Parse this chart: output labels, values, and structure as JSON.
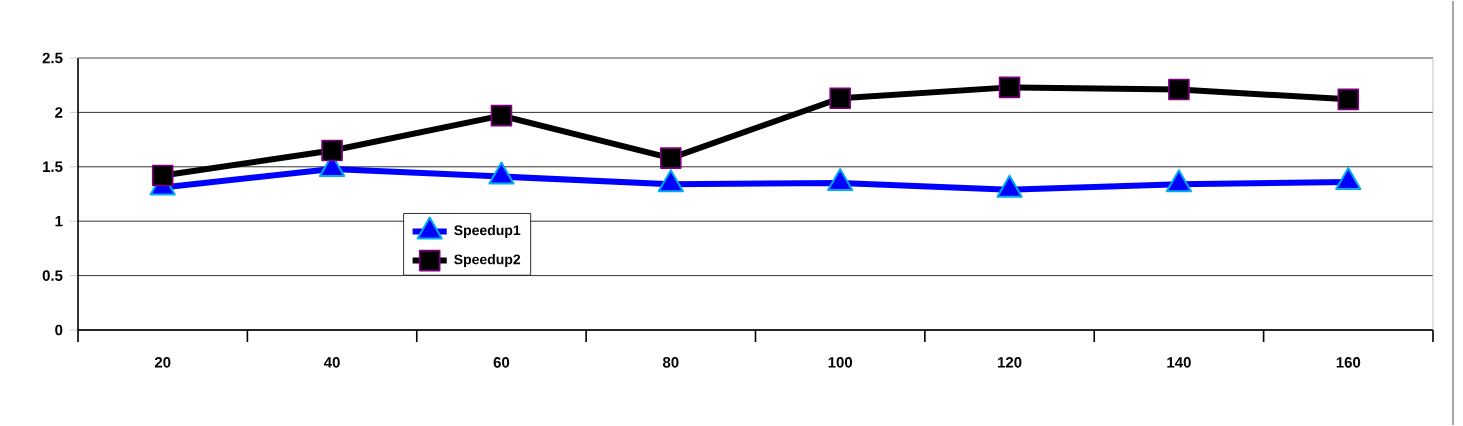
{
  "chart_data": {
    "type": "line",
    "categories": [
      "20",
      "40",
      "60",
      "80",
      "100",
      "120",
      "140",
      "160"
    ],
    "series": [
      {
        "name": "Speedup1",
        "color": "#0000ff",
        "marker": "triangle",
        "values": [
          1.31,
          1.48,
          1.41,
          1.34,
          1.35,
          1.29,
          1.34,
          1.36
        ]
      },
      {
        "name": "Speedup2",
        "color": "#000000",
        "marker": "square",
        "values": [
          1.42,
          1.65,
          1.97,
          1.58,
          2.13,
          2.23,
          2.21,
          2.12
        ]
      }
    ],
    "ylim": [
      0,
      2.5
    ],
    "yticks": [
      0,
      0.5,
      1,
      1.5,
      2,
      2.5
    ],
    "grid": "y",
    "legend": "left"
  }
}
